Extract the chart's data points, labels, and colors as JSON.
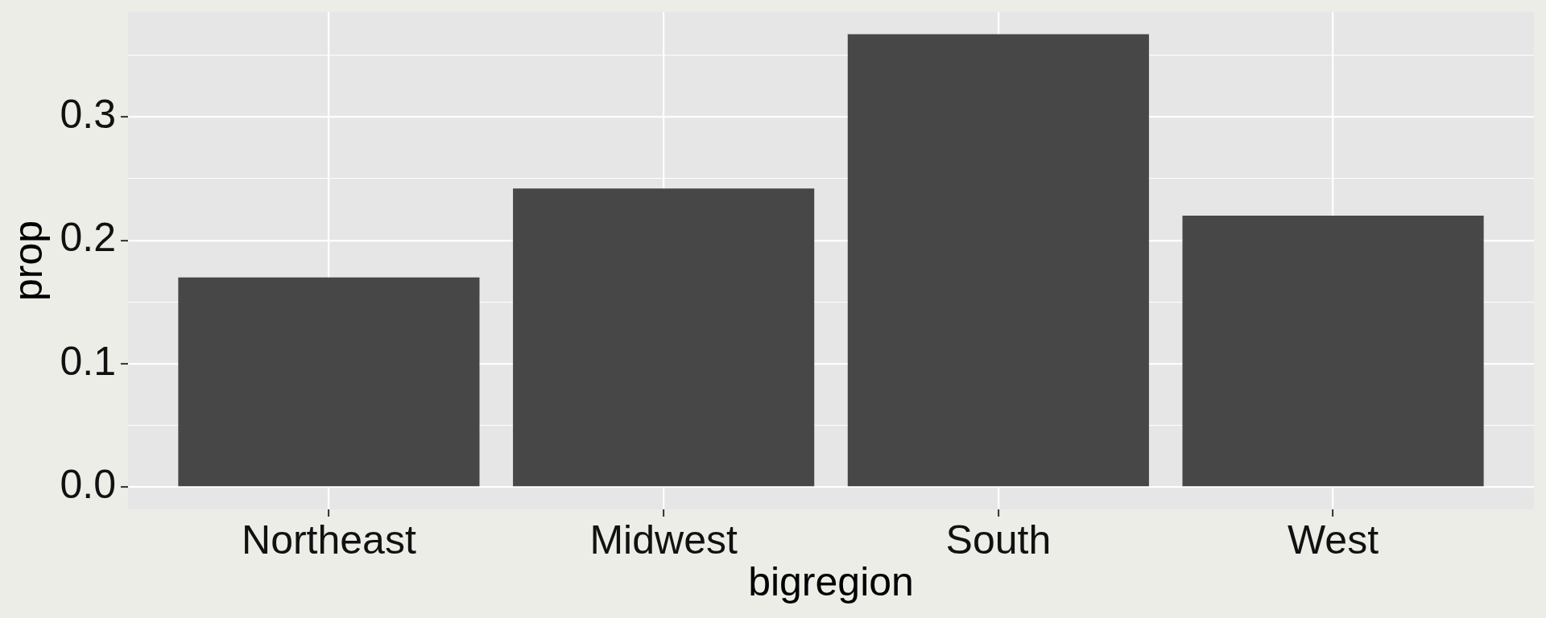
{
  "chart_data": {
    "type": "bar",
    "xlabel": "bigregion",
    "ylabel": "prop",
    "categories": [
      "Northeast",
      "Midwest",
      "South",
      "West"
    ],
    "values": [
      0.17,
      0.242,
      0.367,
      0.22
    ],
    "color": "#474747",
    "ylim": [
      -0.018,
      0.385
    ],
    "yticks": [
      {
        "value": 0,
        "label": "0.0"
      },
      {
        "value": 0.05,
        "label": null
      },
      0.1,
      {
        "value": 0.15,
        "label": null
      },
      0.2,
      {
        "value": 0.25,
        "label": null
      },
      0.3,
      {
        "value": 0.35,
        "label": null
      }
    ],
    "grid": true
  }
}
